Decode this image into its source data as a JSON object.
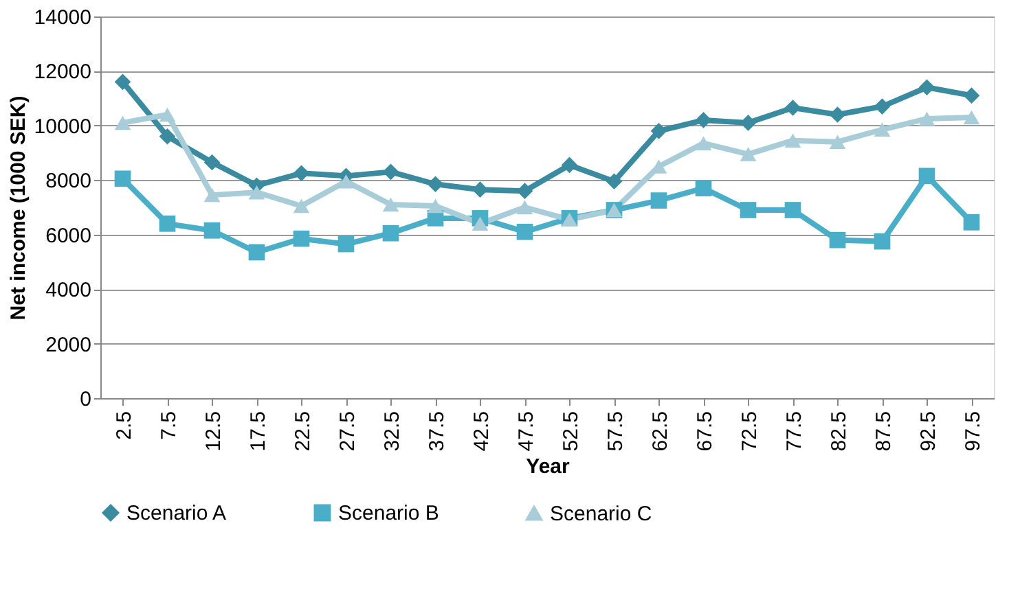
{
  "chart_data": {
    "type": "line",
    "xlabel": "Year",
    "ylabel": "Net income (1000 SEK)",
    "categories": [
      "2.5",
      "7.5",
      "12.5",
      "17.5",
      "22.5",
      "27.5",
      "32.5",
      "37.5",
      "42.5",
      "47.5",
      "52.5",
      "57.5",
      "62.5",
      "67.5",
      "72.5",
      "77.5",
      "82.5",
      "87.5",
      "92.5",
      "97.5"
    ],
    "series": [
      {
        "name": "Scenario A",
        "color": "#3a8aa0",
        "marker": "diamond",
        "values": [
          11600,
          9600,
          8650,
          7800,
          8250,
          8150,
          8300,
          7850,
          7650,
          7600,
          8550,
          7950,
          9800,
          10200,
          10100,
          10650,
          10400,
          10700,
          11400,
          11100
        ]
      },
      {
        "name": "Scenario B",
        "color": "#4aaec8",
        "marker": "square",
        "values": [
          8050,
          6400,
          6150,
          5350,
          5850,
          5650,
          6050,
          6600,
          6600,
          6100,
          6600,
          6900,
          7250,
          7700,
          6900,
          6900,
          5800,
          5750,
          8150,
          6450
        ]
      },
      {
        "name": "Scenario C",
        "color": "#a8cdd9",
        "marker": "triangle",
        "values": [
          10100,
          10400,
          7450,
          7550,
          7050,
          7950,
          7100,
          7050,
          6400,
          7000,
          6550,
          6900,
          8500,
          9350,
          8950,
          9450,
          9400,
          9850,
          10250,
          10300
        ]
      }
    ],
    "ylim": [
      0,
      14000
    ],
    "yticks": [
      0,
      2000,
      4000,
      6000,
      8000,
      10000,
      12000,
      14000
    ],
    "grid": "y",
    "legend": "bottom",
    "line_style": "solid"
  }
}
